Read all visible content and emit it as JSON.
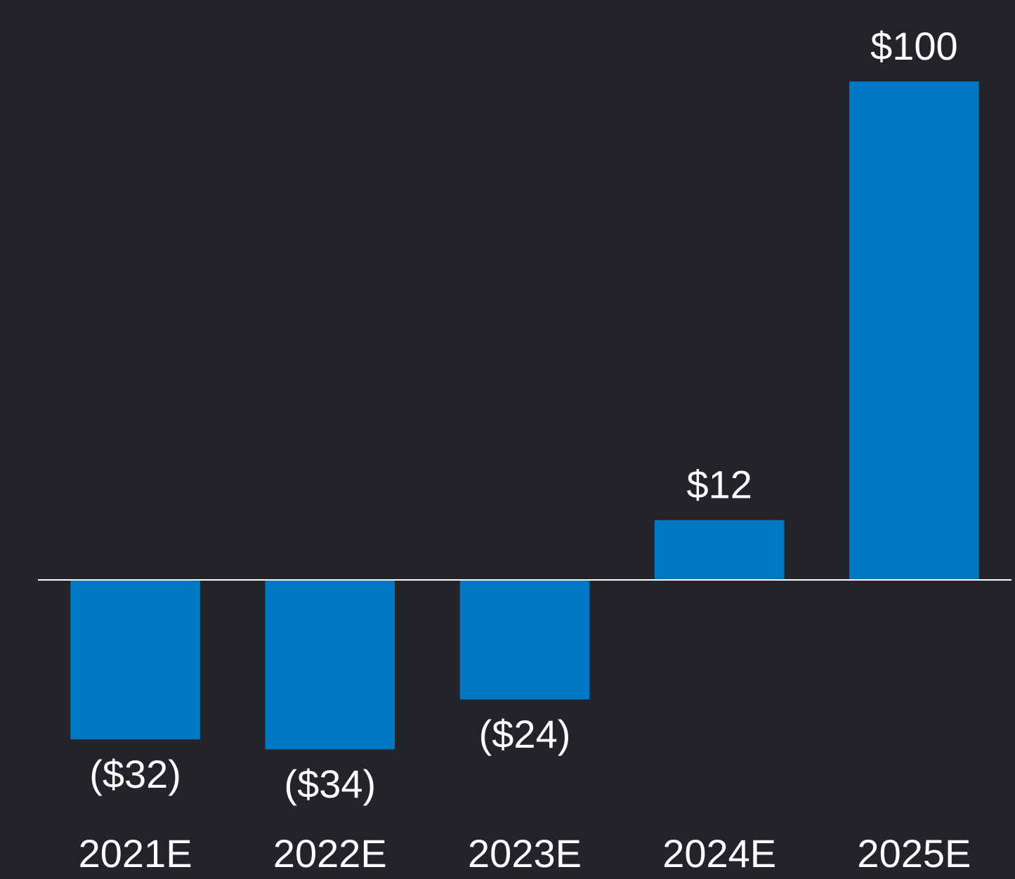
{
  "chart_data": {
    "type": "bar",
    "categories": [
      "2021E",
      "2022E",
      "2023E",
      "2024E",
      "2025E"
    ],
    "values": [
      -32,
      -34,
      -24,
      12,
      100
    ],
    "value_labels": [
      "($32)",
      "($34)",
      "($24)",
      "$12",
      "$100"
    ],
    "color": "#0077c2",
    "ylim": [
      -50,
      110
    ]
  }
}
